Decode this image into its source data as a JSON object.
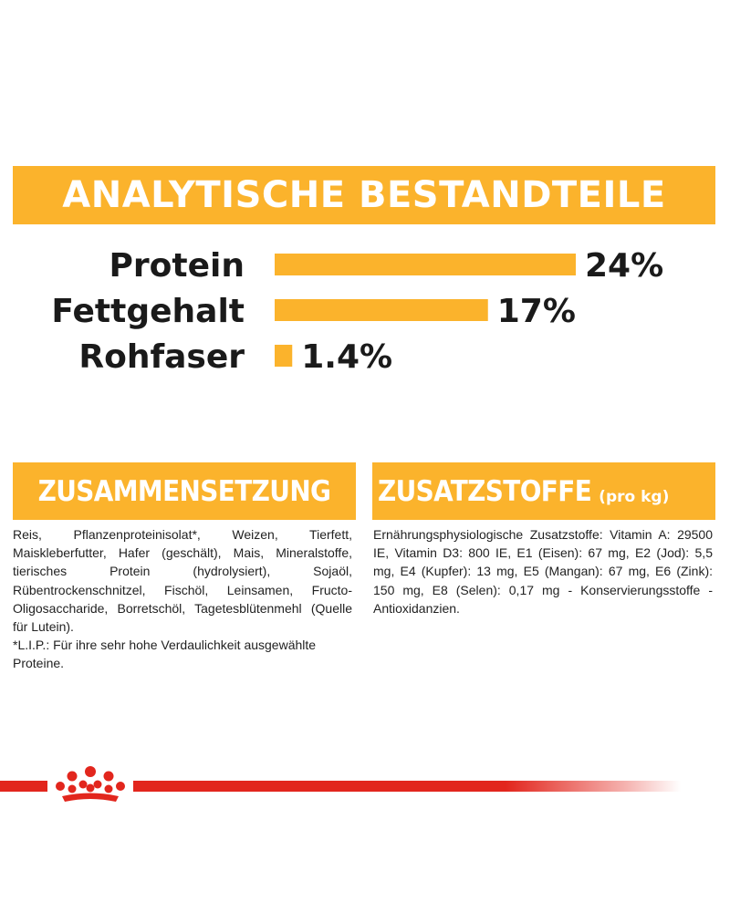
{
  "banner": {
    "title": "ANALYTISCHE BESTANDTEILE"
  },
  "chart_data": {
    "type": "bar",
    "orientation": "horizontal",
    "categories": [
      "Protein",
      "Fettgehalt",
      "Rohfaser"
    ],
    "values": [
      24,
      17,
      1.4
    ],
    "value_labels": [
      "24%",
      "17%",
      "1.4%"
    ],
    "unit": "%",
    "bar_color": "#fbb32c",
    "title": "",
    "xlabel": "",
    "ylabel": ""
  },
  "composition": {
    "title": "ZUSAMMENSETZUNG",
    "text": "Reis, Pflanzenproteinisolat*, Weizen, Tierfett, Maiskleberfutter, Hafer (geschält), Mais, Mineralstoffe, tierisches Protein (hydrolysiert), Sojaöl, Rübentrockenschnitzel, Fischöl, Leinsamen, Fructo-Oligosaccharide, Borretschöl, Tagetesblütenmehl (Quelle für Lutein).",
    "footnote": "*L.I.P.: Für ihre sehr hohe Verdaulichkeit ausgewählte Proteine."
  },
  "additives": {
    "title": "ZUSATZSTOFFE",
    "unit_label": "(pro kg)",
    "text": "Ernährungsphysiologische Zusatzstoffe: Vitamin A: 29500 IE, Vitamin D3: 800 IE, E1 (Eisen): 67 mg, E2 (Jod): 5,5 mg, E4 (Kupfer): 13 mg, E5 (Mangan): 67 mg, E6 (Zink): 150 mg, E8 (Selen): 0,17 mg - Konservierungsstoffe - Antioxidanzien."
  },
  "brand": {
    "accent_color": "#e2261d",
    "logo_icon": "crown-logo-icon"
  }
}
